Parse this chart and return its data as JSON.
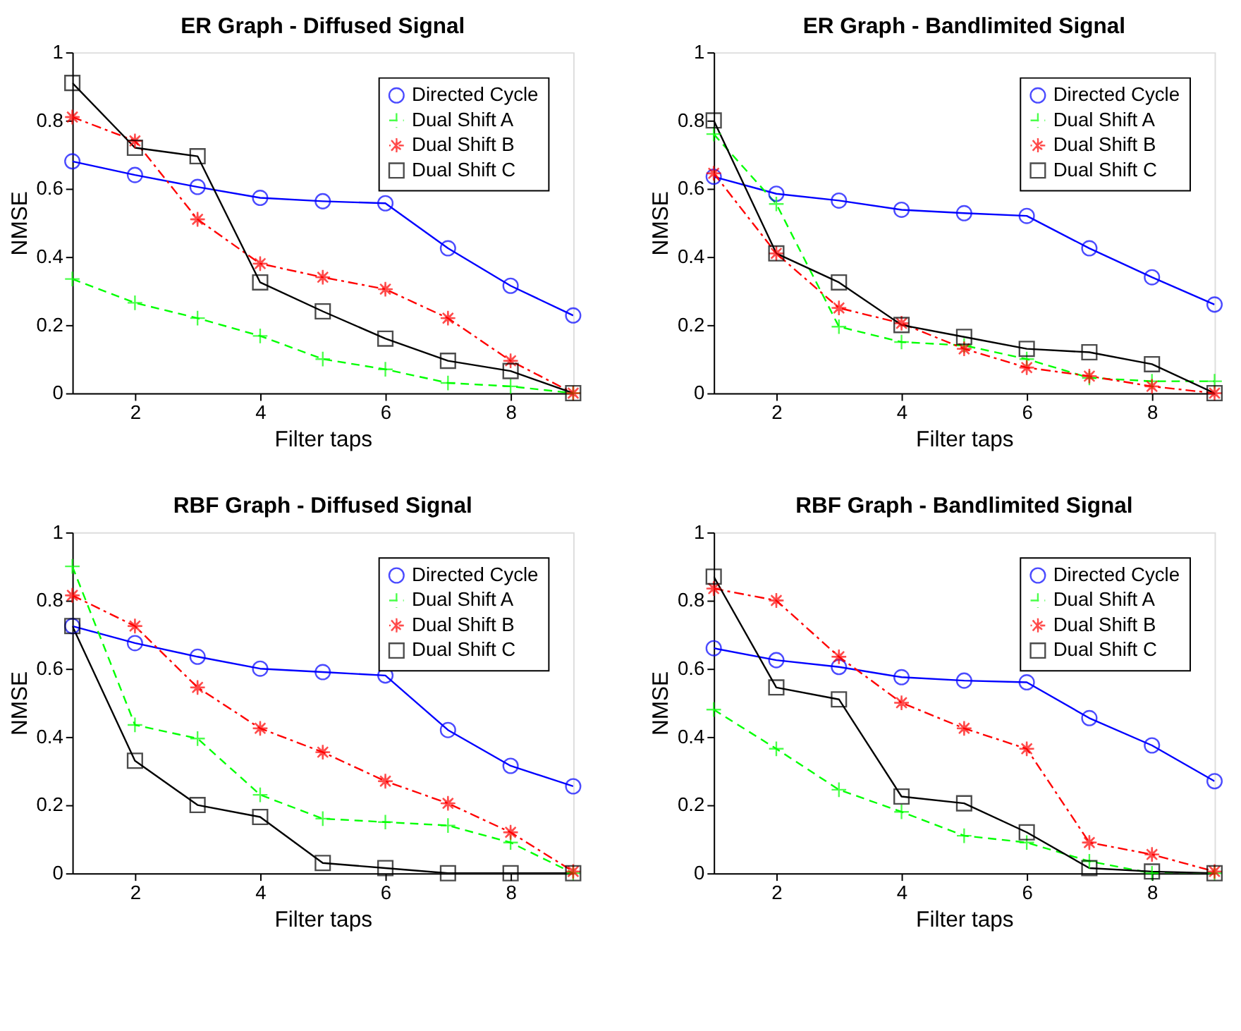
{
  "chart_data": [
    {
      "type": "line",
      "title": "ER Graph - Diffused Signal",
      "xlabel": "Filter taps",
      "ylabel": "NMSE",
      "x": [
        1,
        2,
        3,
        4,
        5,
        6,
        7,
        8,
        9
      ],
      "xlim": [
        1,
        9
      ],
      "xticks": [
        2,
        4,
        6,
        8
      ],
      "ylim": [
        0,
        1
      ],
      "yticks": [
        0,
        0.2,
        0.4,
        0.6,
        0.8,
        1
      ],
      "grid": false,
      "legend": "top right",
      "series": [
        {
          "name": "Directed Cycle",
          "color": "#0000ff",
          "marker": "circle",
          "line_style": "solid",
          "values": [
            0.68,
            0.64,
            0.605,
            0.573,
            0.563,
            0.557,
            0.425,
            0.315,
            0.228
          ]
        },
        {
          "name": "Dual Shift A",
          "color": "#00ff00",
          "marker": "cross",
          "line_style": "dashed",
          "values": [
            0.335,
            0.265,
            0.22,
            0.168,
            0.1,
            0.07,
            0.03,
            0.02,
            0
          ]
        },
        {
          "name": "Dual Shift B",
          "color": "#ff0000",
          "marker": "star",
          "line_style": "dashdot",
          "values": [
            0.81,
            0.74,
            0.51,
            0.38,
            0.34,
            0.305,
            0.22,
            0.095,
            0
          ]
        },
        {
          "name": "Dual Shift C",
          "color": "#000000",
          "marker": "square",
          "line_style": "solid",
          "values": [
            0.91,
            0.72,
            0.695,
            0.325,
            0.24,
            0.16,
            0.095,
            0.065,
            0
          ]
        }
      ]
    },
    {
      "type": "line",
      "title": "ER Graph - Bandlimited Signal",
      "xlabel": "Filter taps",
      "ylabel": "NMSE",
      "x": [
        1,
        2,
        3,
        4,
        5,
        6,
        7,
        8,
        9
      ],
      "xlim": [
        1,
        9
      ],
      "xticks": [
        2,
        4,
        6,
        8
      ],
      "ylim": [
        0,
        1
      ],
      "yticks": [
        0,
        0.2,
        0.4,
        0.6,
        0.8,
        1
      ],
      "grid": false,
      "legend": "top right",
      "series": [
        {
          "name": "Directed Cycle",
          "color": "#0000ff",
          "marker": "circle",
          "line_style": "solid",
          "values": [
            0.635,
            0.585,
            0.565,
            0.538,
            0.528,
            0.52,
            0.425,
            0.34,
            0.26
          ]
        },
        {
          "name": "Dual Shift A",
          "color": "#00ff00",
          "marker": "cross",
          "line_style": "dashed",
          "values": [
            0.76,
            0.555,
            0.195,
            0.15,
            0.14,
            0.1,
            0.045,
            0.035,
            0.035
          ]
        },
        {
          "name": "Dual Shift B",
          "color": "#ff0000",
          "marker": "star",
          "line_style": "dashdot",
          "values": [
            0.645,
            0.41,
            0.25,
            0.205,
            0.13,
            0.075,
            0.05,
            0.02,
            0
          ]
        },
        {
          "name": "Dual Shift C",
          "color": "#000000",
          "marker": "square",
          "line_style": "solid",
          "values": [
            0.8,
            0.41,
            0.325,
            0.2,
            0.165,
            0.13,
            0.12,
            0.085,
            0
          ]
        }
      ]
    },
    {
      "type": "line",
      "title": "RBF Graph - Diffused Signal",
      "xlabel": "Filter taps",
      "ylabel": "NMSE",
      "x": [
        1,
        2,
        3,
        4,
        5,
        6,
        7,
        8,
        9
      ],
      "xlim": [
        1,
        9
      ],
      "xticks": [
        2,
        4,
        6,
        8
      ],
      "ylim": [
        0,
        1
      ],
      "yticks": [
        0,
        0.2,
        0.4,
        0.6,
        0.8,
        1
      ],
      "grid": false,
      "legend": "top right",
      "series": [
        {
          "name": "Directed Cycle",
          "color": "#0000ff",
          "marker": "circle",
          "line_style": "solid",
          "values": [
            0.725,
            0.675,
            0.635,
            0.6,
            0.59,
            0.58,
            0.42,
            0.315,
            0.255
          ]
        },
        {
          "name": "Dual Shift A",
          "color": "#00ff00",
          "marker": "cross",
          "line_style": "dashed",
          "values": [
            0.9,
            0.435,
            0.395,
            0.23,
            0.16,
            0.15,
            0.14,
            0.09,
            0
          ]
        },
        {
          "name": "Dual Shift B",
          "color": "#ff0000",
          "marker": "star",
          "line_style": "dashdot",
          "values": [
            0.815,
            0.725,
            0.545,
            0.425,
            0.355,
            0.27,
            0.205,
            0.12,
            0.005
          ]
        },
        {
          "name": "Dual Shift C",
          "color": "#000000",
          "marker": "square",
          "line_style": "solid",
          "values": [
            0.725,
            0.33,
            0.2,
            0.165,
            0.03,
            0.015,
            0,
            0,
            0
          ]
        }
      ]
    },
    {
      "type": "line",
      "title": "RBF Graph - Bandlimited Signal",
      "xlabel": "Filter taps",
      "ylabel": "NMSE",
      "x": [
        1,
        2,
        3,
        4,
        5,
        6,
        7,
        8,
        9
      ],
      "xlim": [
        1,
        9
      ],
      "xticks": [
        2,
        4,
        6,
        8
      ],
      "ylim": [
        0,
        1
      ],
      "yticks": [
        0,
        0.2,
        0.4,
        0.6,
        0.8,
        1
      ],
      "grid": false,
      "legend": "top right",
      "series": [
        {
          "name": "Directed Cycle",
          "color": "#0000ff",
          "marker": "circle",
          "line_style": "solid",
          "values": [
            0.66,
            0.625,
            0.605,
            0.575,
            0.565,
            0.56,
            0.455,
            0.375,
            0.27
          ]
        },
        {
          "name": "Dual Shift A",
          "color": "#00ff00",
          "marker": "cross",
          "line_style": "dashed",
          "values": [
            0.48,
            0.365,
            0.245,
            0.18,
            0.11,
            0.09,
            0.035,
            0,
            0
          ]
        },
        {
          "name": "Dual Shift B",
          "color": "#ff0000",
          "marker": "star",
          "line_style": "dashdot",
          "values": [
            0.835,
            0.8,
            0.635,
            0.5,
            0.425,
            0.365,
            0.09,
            0.055,
            0.005
          ]
        },
        {
          "name": "Dual Shift C",
          "color": "#000000",
          "marker": "square",
          "line_style": "solid",
          "values": [
            0.87,
            0.545,
            0.51,
            0.225,
            0.205,
            0.12,
            0.015,
            0.005,
            0
          ]
        }
      ]
    }
  ]
}
